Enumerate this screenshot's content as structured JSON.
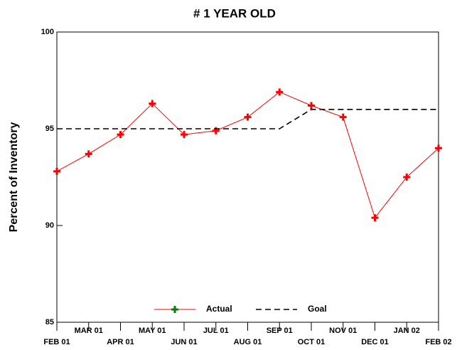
{
  "chart_data": {
    "type": "line",
    "title": "# 1 YEAR OLD",
    "y_label": "Percent of Inventory",
    "categories": [
      "FEB 01",
      "MAR 01",
      "APR 01",
      "MAY 01",
      "JUN 01",
      "JUL 01",
      "AUG 01",
      "SEP 01",
      "OCT 01",
      "NOV 01",
      "DEC 01",
      "JAN 02",
      "FEB 02"
    ],
    "series": [
      {
        "name": "Actual",
        "color": "#ff0000",
        "legend_marker_color": "#008000",
        "marker": "plus",
        "dash": "solid",
        "values": [
          92.8,
          93.7,
          94.7,
          96.3,
          94.7,
          94.9,
          95.6,
          96.9,
          96.2,
          95.6,
          90.4,
          92.5,
          94.0
        ]
      },
      {
        "name": "Goal",
        "color": "#000000",
        "marker": "none",
        "dash": "dashed",
        "values": [
          95,
          95,
          95,
          95,
          95,
          95,
          95,
          95,
          96,
          96,
          96,
          96,
          96
        ]
      }
    ],
    "ylim": [
      85,
      100
    ],
    "yticks": [
      85,
      90,
      95,
      100
    ],
    "grid": false,
    "legend": "lower center"
  }
}
